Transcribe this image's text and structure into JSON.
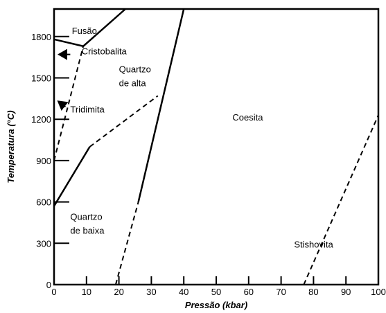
{
  "chart_data": {
    "type": "line",
    "title": "",
    "xlabel": "Pressão (kbar)",
    "ylabel": "Temperatura (°C)",
    "xlim": [
      0,
      100
    ],
    "ylim": [
      0,
      2000
    ],
    "x_ticks": [
      0,
      10,
      20,
      30,
      40,
      50,
      60,
      70,
      80,
      90,
      100
    ],
    "y_ticks": [
      0,
      300,
      600,
      900,
      1200,
      1500,
      1800
    ],
    "grid": false,
    "series": [
      {
        "style": "solid",
        "points": [
          [
            0,
            570
          ],
          [
            11,
            1000
          ]
        ]
      },
      {
        "style": "dashed",
        "points": [
          [
            11,
            1000
          ],
          [
            32,
            1370
          ]
        ]
      },
      {
        "style": "dashed",
        "points": [
          [
            0,
            900
          ],
          [
            9,
            1730
          ]
        ]
      },
      {
        "style": "solid",
        "points": [
          [
            0,
            1780
          ],
          [
            9,
            1730
          ],
          [
            22,
            2000
          ]
        ]
      },
      {
        "style": "solid",
        "points": [
          [
            26,
            600
          ],
          [
            40,
            2000
          ]
        ]
      },
      {
        "style": "dashed",
        "points": [
          [
            19,
            0
          ],
          [
            26,
            600
          ]
        ]
      },
      {
        "style": "dashed",
        "points": [
          [
            77,
            0
          ],
          [
            100,
            1230
          ]
        ]
      }
    ],
    "annotations": [
      {
        "text": "Fusão",
        "x": 5.5,
        "y": 1820
      },
      {
        "text": "Cristobalita",
        "x": 8.5,
        "y": 1670
      },
      {
        "text": "Quartzo",
        "x": 20,
        "y": 1540
      },
      {
        "text": "de alta",
        "x": 20,
        "y": 1440
      },
      {
        "text": "Tridimita",
        "x": 5,
        "y": 1250
      },
      {
        "text": "Coesita",
        "x": 55,
        "y": 1190
      },
      {
        "text": "Quartzo",
        "x": 5,
        "y": 470
      },
      {
        "text": "de baixa",
        "x": 5,
        "y": 370
      },
      {
        "text": "Stishovita",
        "x": 74,
        "y": 270
      }
    ],
    "arrows": [
      {
        "from": [
          5,
          1670
        ],
        "to": [
          1.5,
          1670
        ]
      },
      {
        "from": [
          3.5,
          1290
        ],
        "to": [
          1.3,
          1330
        ]
      }
    ]
  }
}
